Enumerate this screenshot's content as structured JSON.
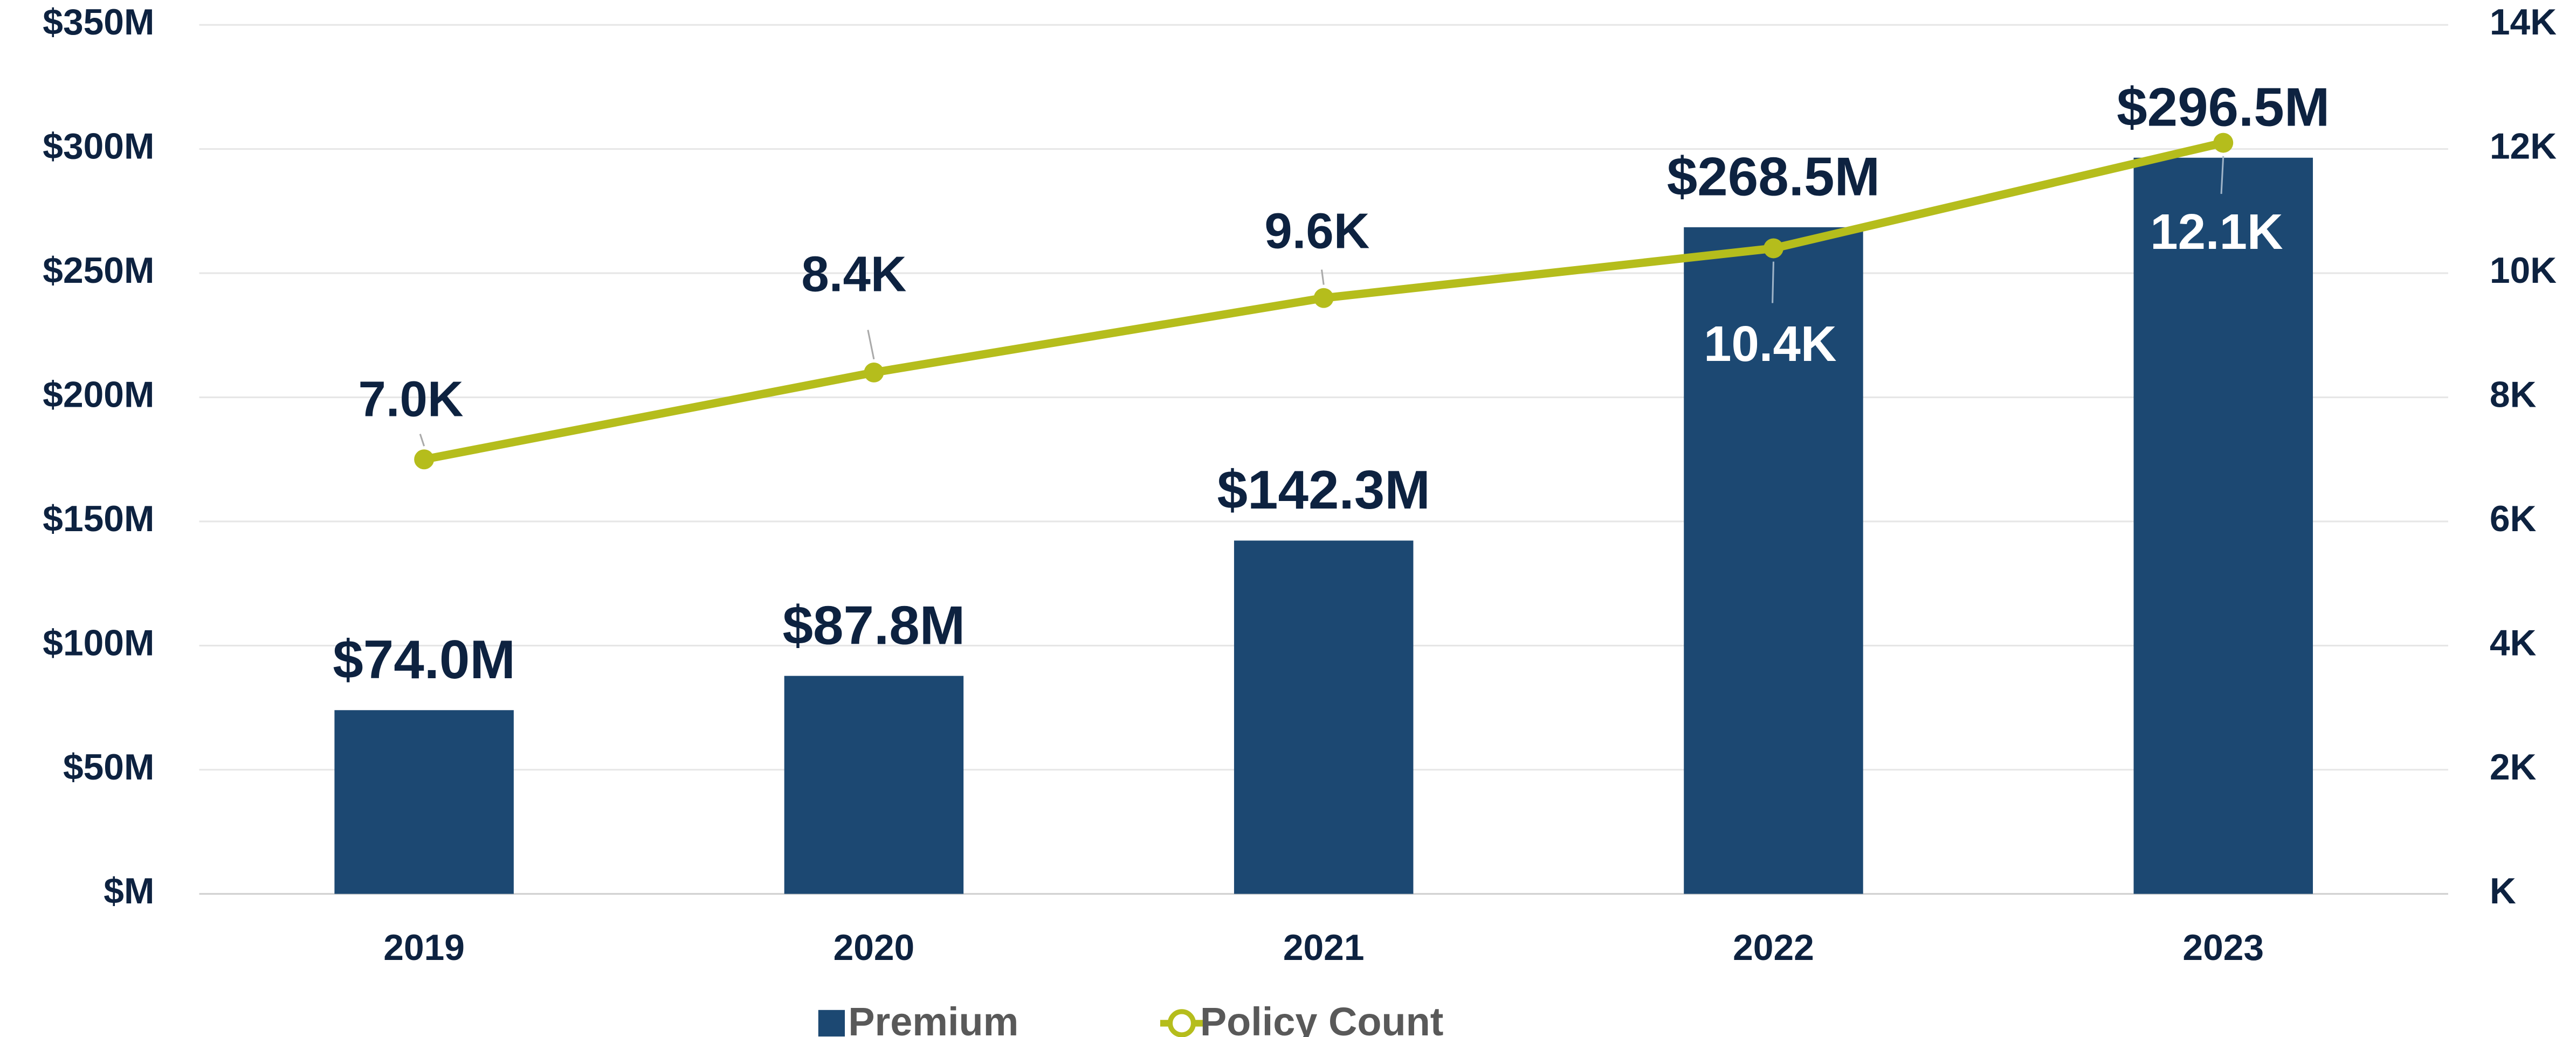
{
  "chart_data": {
    "type": "bar",
    "categories": [
      "2019",
      "2020",
      "2021",
      "2022",
      "2023"
    ],
    "series": [
      {
        "name": "Premium",
        "color": "#1c4872",
        "values": [
          74.0,
          87.8,
          142.3,
          268.5,
          296.5
        ],
        "value_labels": [
          "$74.0M",
          "$87.8M",
          "$142.3M",
          "$268.5M",
          "$296.5M"
        ]
      },
      {
        "name": "Policy Count",
        "color": "#b5bd1c",
        "type": "line",
        "axis": "y2",
        "values": [
          7.0,
          8.4,
          9.6,
          10.4,
          12.1
        ],
        "value_labels": [
          "7.0K",
          "8.4K",
          "9.6K",
          "10.4K",
          "12.1K"
        ]
      }
    ],
    "ylim": [
      0,
      350
    ],
    "yticks": [
      {
        "value": 0,
        "label": "$M"
      },
      {
        "value": 50,
        "label": "$50M"
      },
      {
        "value": 100,
        "label": "$100M"
      },
      {
        "value": 150,
        "label": "$150M"
      },
      {
        "value": 200,
        "label": "$200M"
      },
      {
        "value": 250,
        "label": "$250M"
      },
      {
        "value": 300,
        "label": "$300M"
      },
      {
        "value": 350,
        "label": "$350M"
      }
    ],
    "y2lim": [
      0,
      14
    ],
    "y2ticks": [
      {
        "value": 0,
        "label": "K"
      },
      {
        "value": 2,
        "label": "2K"
      },
      {
        "value": 4,
        "label": "4K"
      },
      {
        "value": 6,
        "label": "6K"
      },
      {
        "value": 8,
        "label": "8K"
      },
      {
        "value": 10,
        "label": "10K"
      },
      {
        "value": 12,
        "label": "12K"
      },
      {
        "value": 14,
        "label": "14K"
      }
    ],
    "grid": true,
    "legend": "bottom"
  }
}
